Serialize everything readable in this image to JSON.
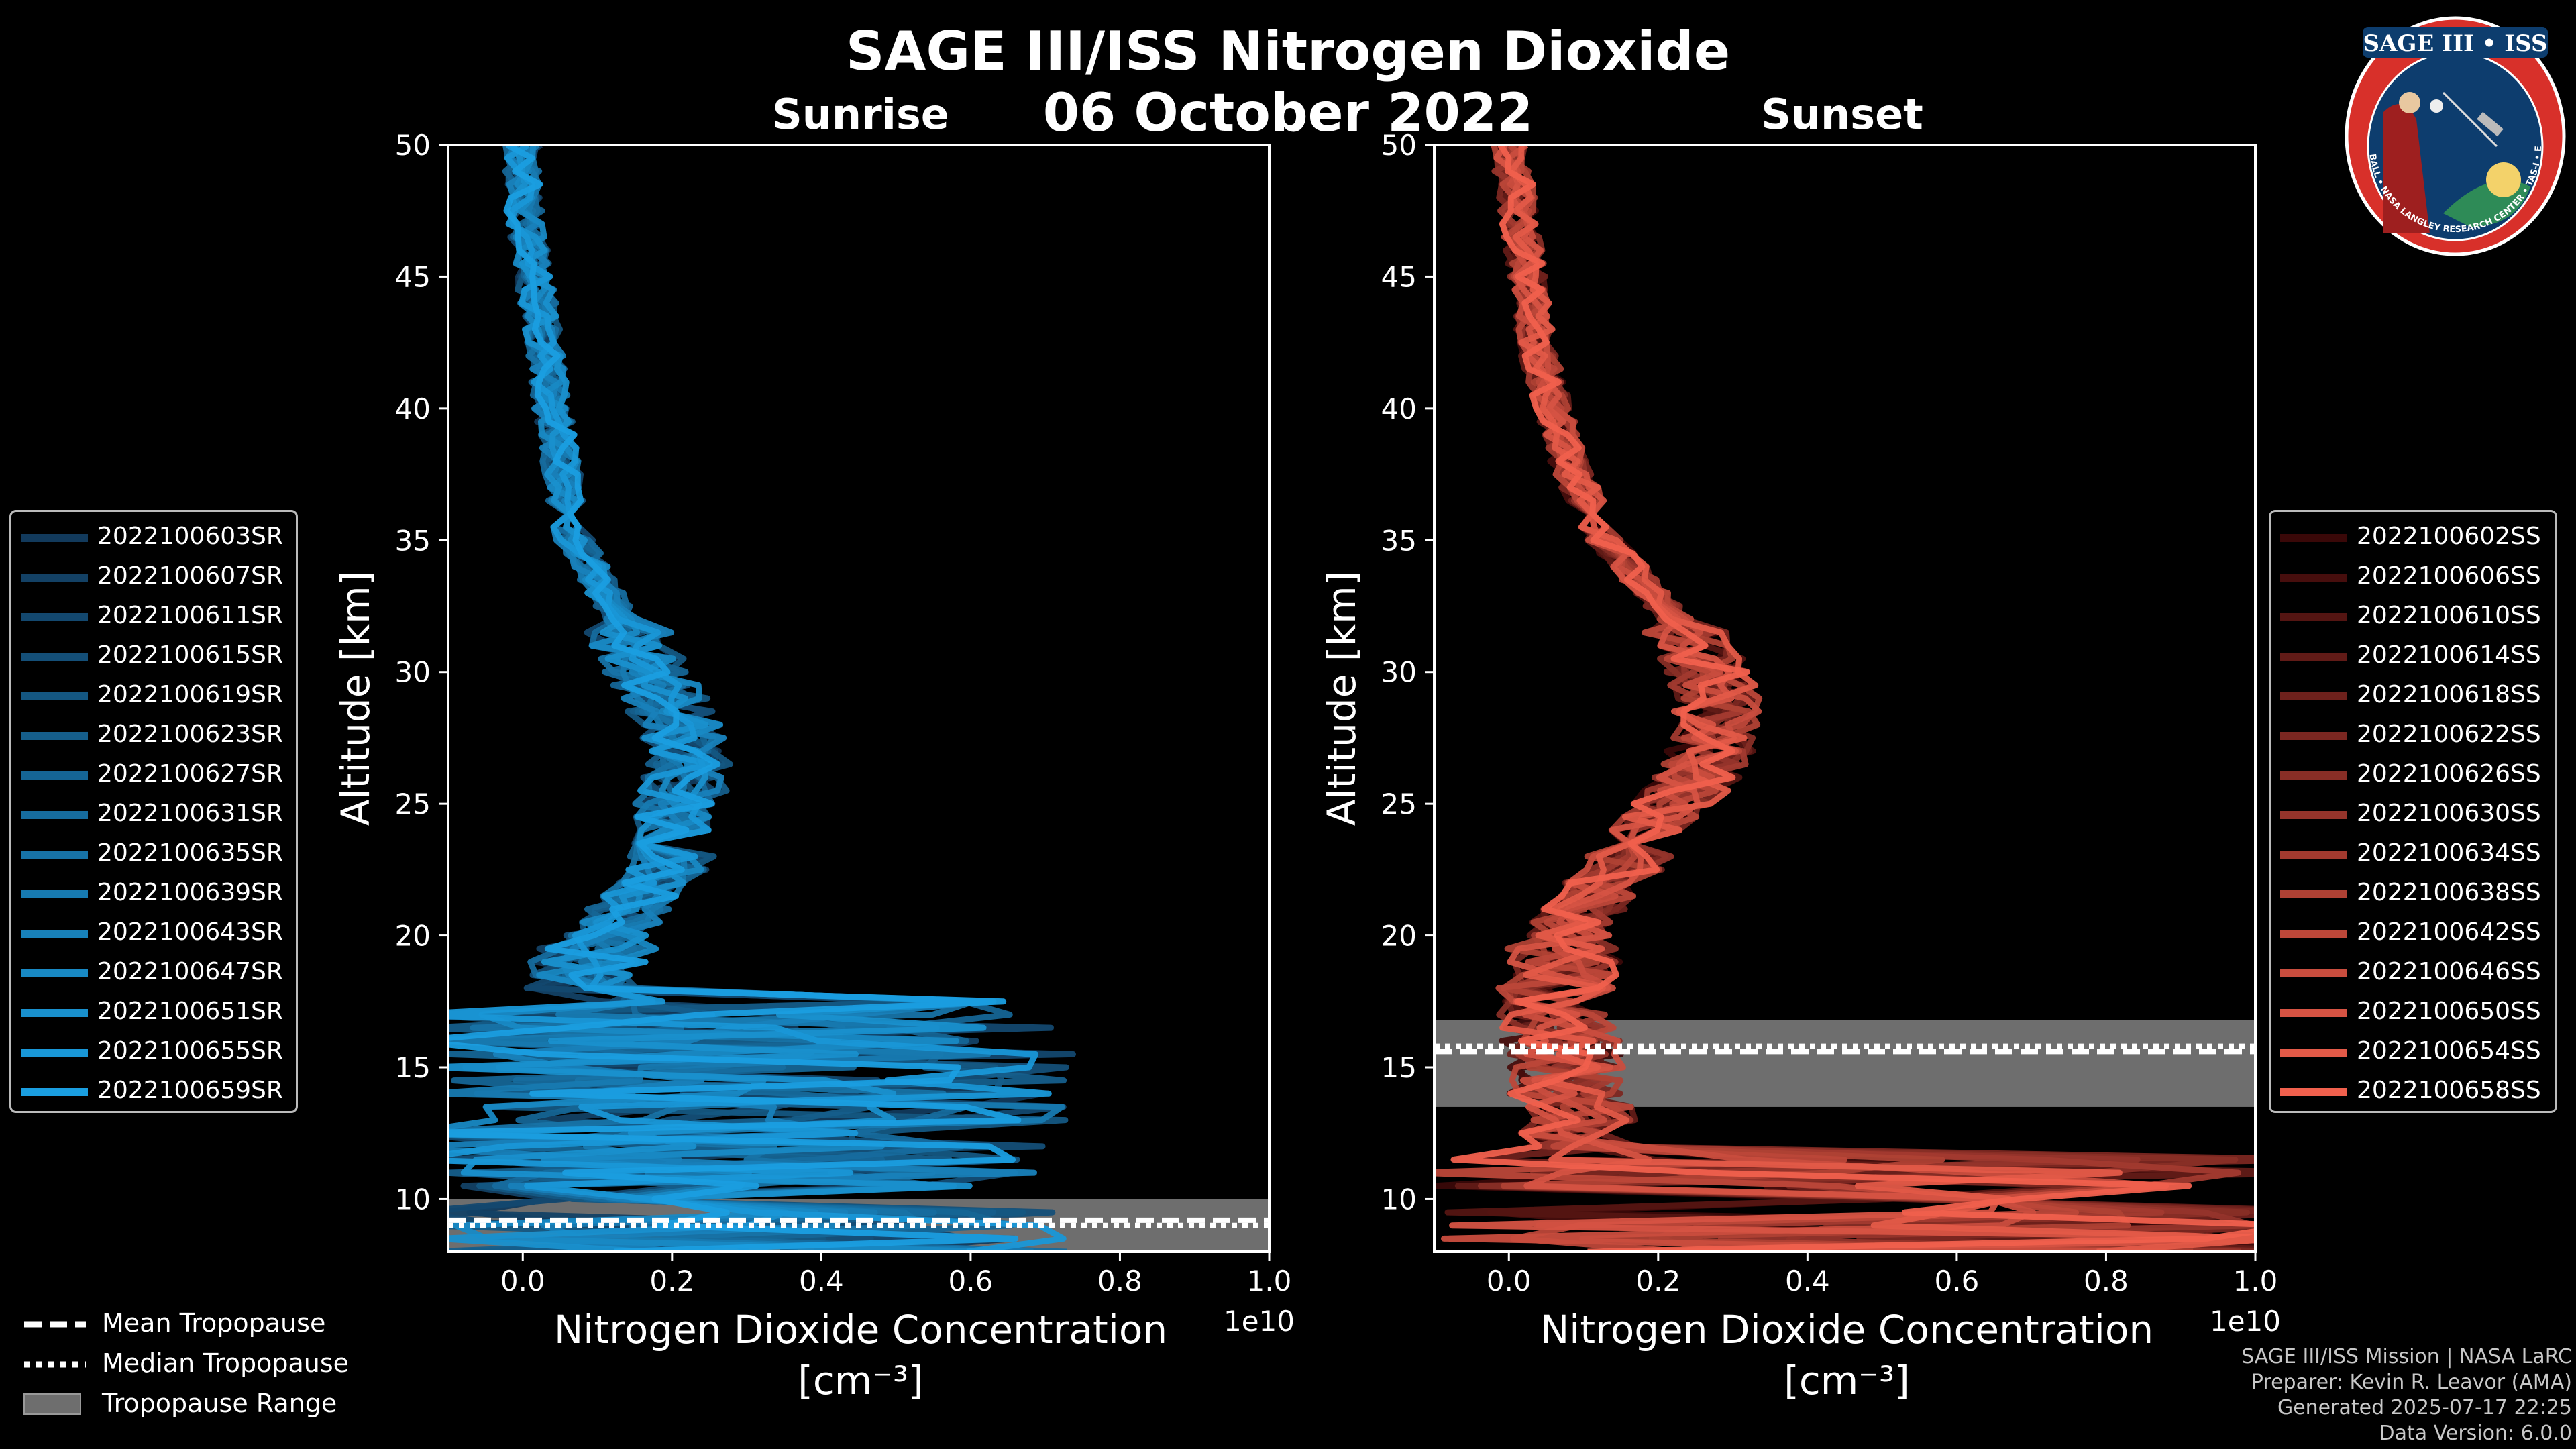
{
  "title": "SAGE III/ISS Nitrogen Dioxide",
  "date": "06 October 2022",
  "panels": {
    "sunrise": {
      "title": "Sunrise"
    },
    "sunset": {
      "title": "Sunset"
    }
  },
  "colors": {
    "sunrise_dark": "#123a5c",
    "sunrise_light": "#1a9ee0",
    "sunset_dark": "#3a0808",
    "sunset_light": "#f0604d",
    "tropopause_range": "#6e6e6e"
  },
  "chart_data": [
    {
      "type": "line",
      "panel": "sunrise",
      "title": "Sunrise",
      "xlabel": "Nitrogen Dioxide Concentration",
      "xlabel_unit": "[cm⁻³]",
      "x_offset_label": "1e10",
      "ylabel": "Altitude [km]",
      "xlim": [
        -0.1,
        1.0
      ],
      "ylim": [
        8,
        50
      ],
      "x_ticks": [
        0.0,
        0.2,
        0.4,
        0.6,
        0.8,
        1.0
      ],
      "x_tick_labels": [
        "0.0",
        "0.2",
        "0.4",
        "0.6",
        "0.8",
        "1.0"
      ],
      "y_ticks": [
        10,
        15,
        20,
        25,
        30,
        35,
        40,
        45,
        50
      ],
      "y_tick_labels": [
        "10",
        "15",
        "20",
        "25",
        "30",
        "35",
        "40",
        "45",
        "50"
      ],
      "reference_profile": {
        "altitude_km": [
          8,
          10,
          12,
          14,
          16,
          17,
          18,
          19,
          20,
          21,
          22,
          23,
          24,
          25,
          26,
          27,
          28,
          29,
          30,
          31,
          32,
          33,
          34,
          35,
          36,
          38,
          40,
          42,
          44,
          46,
          48,
          50
        ],
        "no2_1e10": [
          0.12,
          0.1,
          0.1,
          0.11,
          0.12,
          0.1,
          0.08,
          0.09,
          0.11,
          0.14,
          0.18,
          0.2,
          0.21,
          0.21,
          0.22,
          0.22,
          0.21,
          0.19,
          0.17,
          0.15,
          0.13,
          0.11,
          0.09,
          0.07,
          0.06,
          0.05,
          0.04,
          0.03,
          0.02,
          0.01,
          0.0,
          0.0
        ]
      },
      "tropopause": {
        "mean_km": 9.2,
        "median_km": 9.0,
        "range_km": [
          8.0,
          10.0
        ]
      },
      "series": [
        {
          "name": "2022100603SR"
        },
        {
          "name": "2022100607SR"
        },
        {
          "name": "2022100611SR"
        },
        {
          "name": "2022100615SR"
        },
        {
          "name": "2022100619SR"
        },
        {
          "name": "2022100623SR"
        },
        {
          "name": "2022100627SR"
        },
        {
          "name": "2022100631SR"
        },
        {
          "name": "2022100635SR"
        },
        {
          "name": "2022100639SR"
        },
        {
          "name": "2022100643SR"
        },
        {
          "name": "2022100647SR"
        },
        {
          "name": "2022100651SR"
        },
        {
          "name": "2022100655SR"
        },
        {
          "name": "2022100659SR"
        }
      ]
    },
    {
      "type": "line",
      "panel": "sunset",
      "title": "Sunset",
      "xlabel": "Nitrogen Dioxide Concentration",
      "xlabel_unit": "[cm⁻³]",
      "x_offset_label": "1e10",
      "ylabel": "Altitude [km]",
      "xlim": [
        -0.1,
        1.0
      ],
      "ylim": [
        8,
        50
      ],
      "x_ticks": [
        0.0,
        0.2,
        0.4,
        0.6,
        0.8,
        1.0
      ],
      "x_tick_labels": [
        "0.0",
        "0.2",
        "0.4",
        "0.6",
        "0.8",
        "1.0"
      ],
      "y_ticks": [
        10,
        15,
        20,
        25,
        30,
        35,
        40,
        45,
        50
      ],
      "y_tick_labels": [
        "10",
        "15",
        "20",
        "25",
        "30",
        "35",
        "40",
        "45",
        "50"
      ],
      "reference_profile": {
        "altitude_km": [
          8,
          10,
          12,
          14,
          16,
          17,
          18,
          19,
          20,
          21,
          22,
          23,
          24,
          25,
          26,
          27,
          28,
          29,
          30,
          31,
          32,
          33,
          34,
          35,
          36,
          38,
          40,
          42,
          44,
          46,
          48,
          50
        ],
        "no2_1e10": [
          0.14,
          0.12,
          0.1,
          0.08,
          0.07,
          0.06,
          0.06,
          0.07,
          0.08,
          0.1,
          0.13,
          0.16,
          0.19,
          0.22,
          0.25,
          0.27,
          0.28,
          0.28,
          0.27,
          0.25,
          0.22,
          0.19,
          0.16,
          0.13,
          0.11,
          0.08,
          0.06,
          0.04,
          0.03,
          0.02,
          0.01,
          0.0
        ]
      },
      "tropopause": {
        "mean_km": 15.6,
        "median_km": 15.8,
        "range_km": [
          13.5,
          16.8
        ]
      },
      "series": [
        {
          "name": "2022100602SS"
        },
        {
          "name": "2022100606SS"
        },
        {
          "name": "2022100610SS"
        },
        {
          "name": "2022100614SS"
        },
        {
          "name": "2022100618SS"
        },
        {
          "name": "2022100622SS"
        },
        {
          "name": "2022100626SS"
        },
        {
          "name": "2022100630SS"
        },
        {
          "name": "2022100634SS"
        },
        {
          "name": "2022100638SS"
        },
        {
          "name": "2022100642SS"
        },
        {
          "name": "2022100646SS"
        },
        {
          "name": "2022100650SS"
        },
        {
          "name": "2022100654SS"
        },
        {
          "name": "2022100658SS"
        }
      ]
    }
  ],
  "tropopause_legend": {
    "mean": "Mean Tropopause",
    "median": "Median Tropopause",
    "range": "Tropopause Range"
  },
  "footer": {
    "line1": "SAGE III/ISS Mission | NASA LaRC",
    "line2": "Preparer: Kevin R. Leavor (AMA)",
    "line3": "Generated 2025-07-17 22:25",
    "line4": "Data Version: 6.0.0"
  },
  "logo": {
    "text_top": "SAGE III • ISS",
    "text_bottom": "BALL • NASA LANGLEY RESEARCH CENTER • TAS-I • ESA"
  }
}
